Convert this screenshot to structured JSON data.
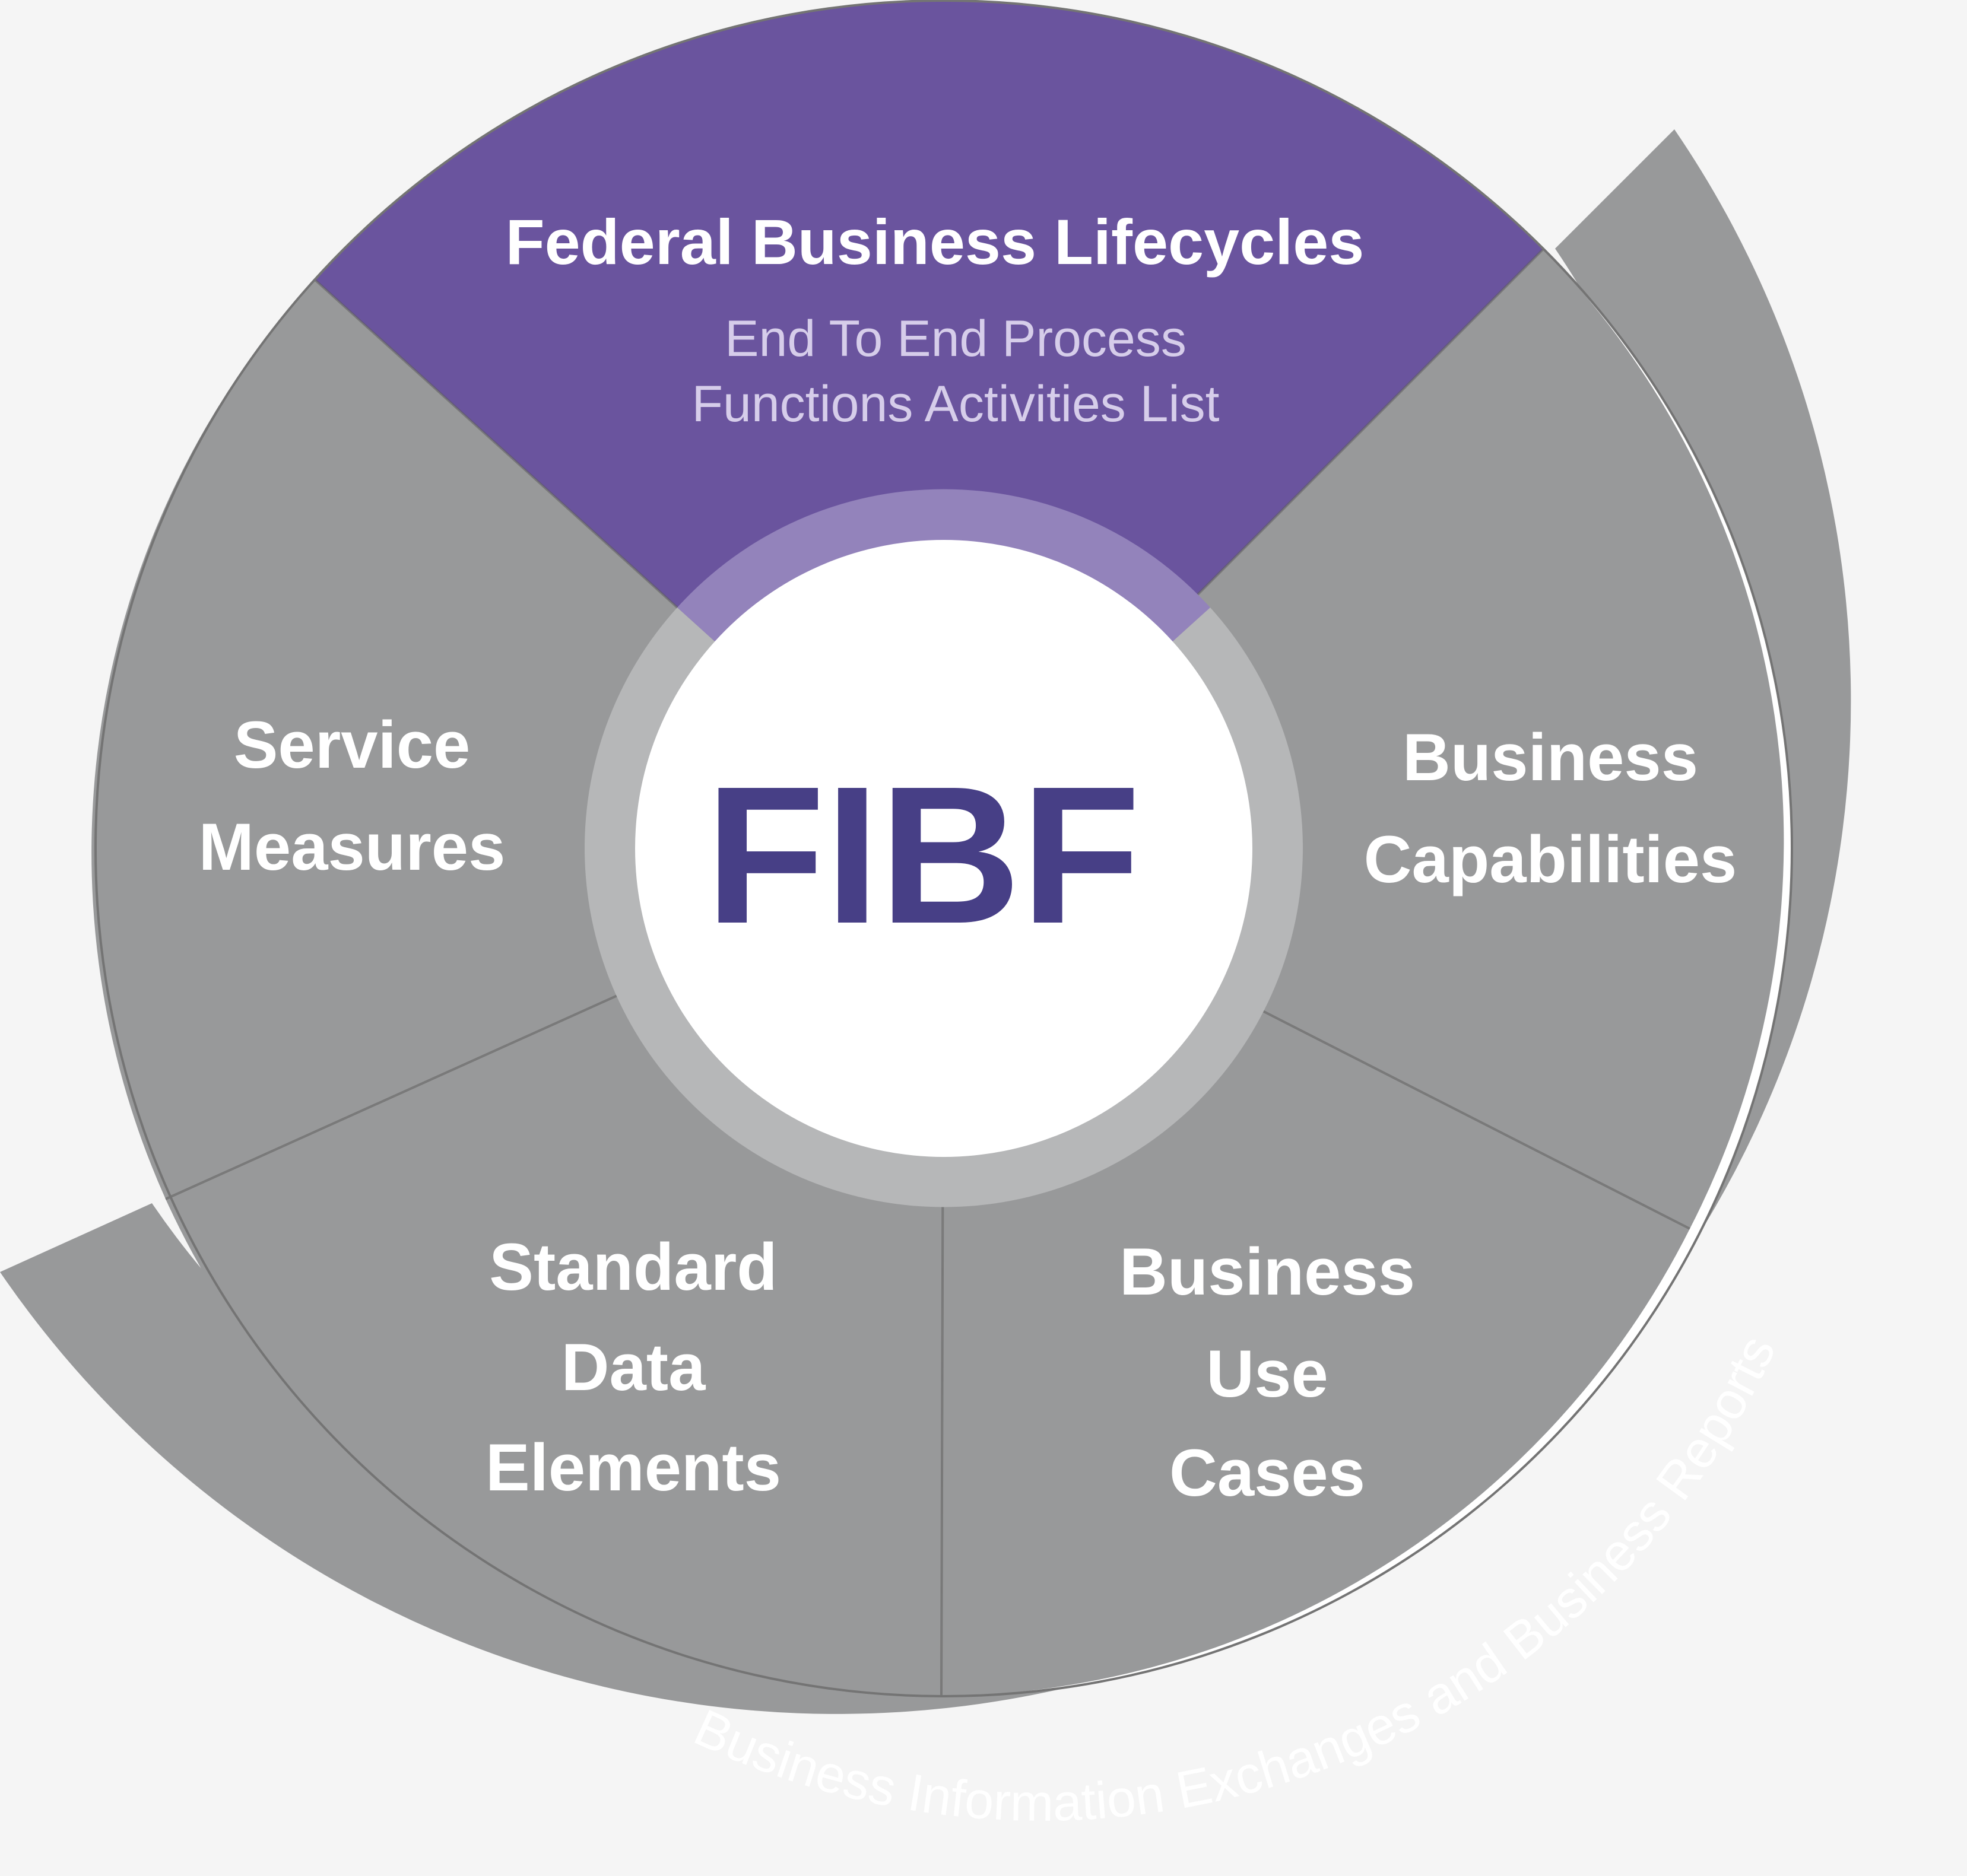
{
  "center": {
    "label": "FIBF"
  },
  "outer_ring": {
    "label": "Business Information Exchanges and Business Reports"
  },
  "segments": {
    "lifecycles": {
      "title": "Federal Business Lifecycles",
      "subtitle_line1": "End To End Process",
      "subtitle_line2": "Functions Activities List"
    },
    "capabilities": {
      "line1": "Business",
      "line2": "Capabilities"
    },
    "use_cases": {
      "line1": "Business",
      "line2": "Use",
      "line3": "Cases"
    },
    "data_elements": {
      "line1": "Standard",
      "line2": "Data",
      "line3": "Elements"
    },
    "service_measures": {
      "line1": "Service",
      "line2": "Measures"
    }
  },
  "colors": {
    "purple": "#6a549e",
    "purple_ring": "#9383bb",
    "gray": "#98999a",
    "gray_ring": "#b6b7b8",
    "center_text": "#473f86",
    "background": "#f5f5f5"
  }
}
